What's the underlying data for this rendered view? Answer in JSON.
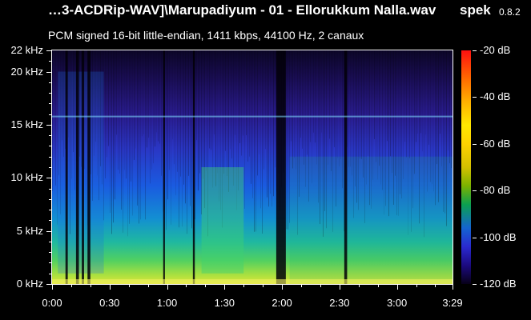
{
  "header": {
    "file_title": "…3-ACDRip-WAV]\\Marupadiyum - 01 - Ellorukkum Nalla.wav",
    "app_name": "spek",
    "app_version": "0.8.2",
    "info": "PCM signed 16-bit little-endian, 1411 kbps, 44100 Hz, 2 canaux"
  },
  "y_axis": {
    "labels": [
      "22 kHz",
      "20 kHz",
      "15 kHz",
      "10 kHz",
      "5 kHz",
      "0 kHz"
    ],
    "values_khz": [
      22,
      20,
      15,
      10,
      5,
      0
    ]
  },
  "x_axis": {
    "labels": [
      "0:00",
      "0:30",
      "1:00",
      "1:30",
      "2:00",
      "2:30",
      "3:00",
      "3:29"
    ],
    "values_sec": [
      0,
      30,
      60,
      90,
      120,
      150,
      180,
      209
    ]
  },
  "colorbar": {
    "labels": [
      "-20 dB",
      "-40 dB",
      "-60 dB",
      "-80 dB",
      "-100 dB",
      "-120 dB"
    ],
    "values_db": [
      -20,
      -40,
      -60,
      -80,
      -100,
      -120
    ]
  },
  "colors": {
    "background": "#000000",
    "text": "#ffffff",
    "cutoff_line": "#7fe0ff"
  }
}
